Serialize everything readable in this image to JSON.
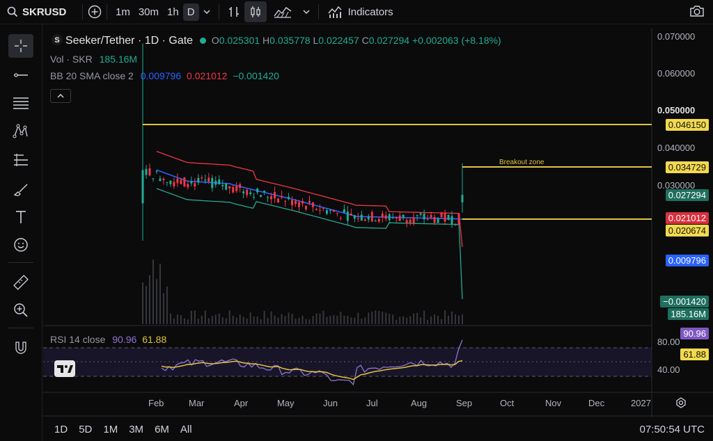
{
  "topbar": {
    "symbol": "SKRUSD",
    "intervals": [
      "1m",
      "30m",
      "1h",
      "D"
    ],
    "active_interval": "D",
    "indicators_label": "Indicators"
  },
  "legend": {
    "title": "Seeker/Tether · 1D · Gate",
    "o_label": "O",
    "o_value": "0.025301",
    "h_label": "H",
    "h_value": "0.035778",
    "l_label": "L",
    "l_value": "0.022457",
    "c_label": "C",
    "c_value": "0.027294",
    "change": "+0.002063 (+8.18%)",
    "vol_label": "Vol · SKR",
    "vol_value": "185.16M",
    "bb_label": "BB 20 SMA close 2",
    "bb_basis": "0.009796",
    "bb_upper": "0.021012",
    "bb_lower": "−0.001420"
  },
  "price_axis": {
    "ticks": [
      "0.070000",
      "0.060000",
      "0.050000",
      "0.040000",
      "0.030000"
    ],
    "labels": [
      {
        "text": "0.046150",
        "style": "yellow"
      },
      {
        "text": "0.034729",
        "style": "yellow"
      },
      {
        "text": "0.027294",
        "style": "green"
      },
      {
        "text": "0.021012",
        "style": "red"
      },
      {
        "text": "0.020674",
        "style": "yellow"
      },
      {
        "text": "0.009796",
        "style": "blue"
      },
      {
        "text": "−0.001420",
        "style": "green"
      },
      {
        "text": "185.16M",
        "style": "green"
      }
    ]
  },
  "annotation": {
    "breakout": "Breakout zone"
  },
  "rsi": {
    "label": "RSI 14 close",
    "value": "90.96",
    "ma": "61.88",
    "ticks": [
      "80.00",
      "40.00"
    ],
    "badge_value": "90.96",
    "badge_ma": "61.88"
  },
  "time_axis": [
    "Feb",
    "Mar",
    "Apr",
    "May",
    "Jun",
    "Jul",
    "Aug",
    "Sep",
    "Oct",
    "Nov",
    "Dec",
    "2027"
  ],
  "ranges": [
    "1D",
    "5D",
    "1M",
    "3M",
    "6M",
    "All"
  ],
  "clock": "07:50:54 UTC",
  "colors": {
    "up": "#22ab94",
    "down": "#f23645",
    "bb_basis": "#2962ff",
    "bb_upper": "#f23645",
    "bb_lower": "#22ab94",
    "hline": "#e0c341",
    "rsi": "#8e76d1",
    "rsi_ma": "#e0c341"
  }
}
